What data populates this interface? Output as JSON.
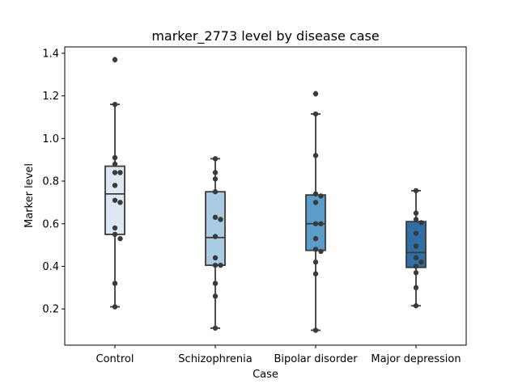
{
  "chart_data": {
    "type": "box",
    "title": "marker_2773 level by disease case",
    "xlabel": "Case",
    "ylabel": "Marker level",
    "ylim": [
      0.03,
      1.43
    ],
    "yticks": [
      0.2,
      0.4,
      0.6,
      0.8,
      1.0,
      1.2,
      1.4
    ],
    "ytick_labels": [
      "0.2",
      "0.4",
      "0.6",
      "0.8",
      "1.0",
      "1.2",
      "1.4"
    ],
    "grid": false,
    "categories": [
      "Control",
      "Schizophrenia",
      "Bipolar disorder",
      "Major depression"
    ],
    "series": [
      {
        "category": "Control",
        "color": "#dce9f5",
        "whisker_low": 0.21,
        "q1": 0.55,
        "median": 0.74,
        "q3": 0.87,
        "whisker_high": 1.16,
        "outliers": [
          1.37
        ],
        "points": [
          1.37,
          1.16,
          0.91,
          0.88,
          0.84,
          0.84,
          0.78,
          0.71,
          0.7,
          0.58,
          0.55,
          0.53,
          0.32,
          0.21
        ]
      },
      {
        "category": "Schizophrenia",
        "color": "#a9cce3",
        "whisker_low": 0.11,
        "q1": 0.405,
        "median": 0.535,
        "q3": 0.75,
        "whisker_high": 0.905,
        "outliers": [],
        "points": [
          0.905,
          0.84,
          0.81,
          0.75,
          0.63,
          0.62,
          0.54,
          0.44,
          0.405,
          0.405,
          0.32,
          0.26,
          0.11
        ]
      },
      {
        "category": "Bipolar disorder",
        "color": "#5a9dcb",
        "whisker_low": 0.1,
        "q1": 0.475,
        "median": 0.6,
        "q3": 0.735,
        "whisker_high": 1.115,
        "outliers": [
          1.21
        ],
        "points": [
          1.21,
          1.115,
          0.92,
          0.74,
          0.73,
          0.7,
          0.6,
          0.6,
          0.53,
          0.48,
          0.47,
          0.42,
          0.365,
          0.1
        ]
      },
      {
        "category": "Major depression",
        "color": "#2f6fa8",
        "whisker_low": 0.215,
        "q1": 0.395,
        "median": 0.465,
        "q3": 0.61,
        "whisker_high": 0.755,
        "outliers": [],
        "points": [
          0.755,
          0.65,
          0.62,
          0.605,
          0.555,
          0.495,
          0.44,
          0.42,
          0.4,
          0.37,
          0.3,
          0.215
        ]
      }
    ]
  }
}
